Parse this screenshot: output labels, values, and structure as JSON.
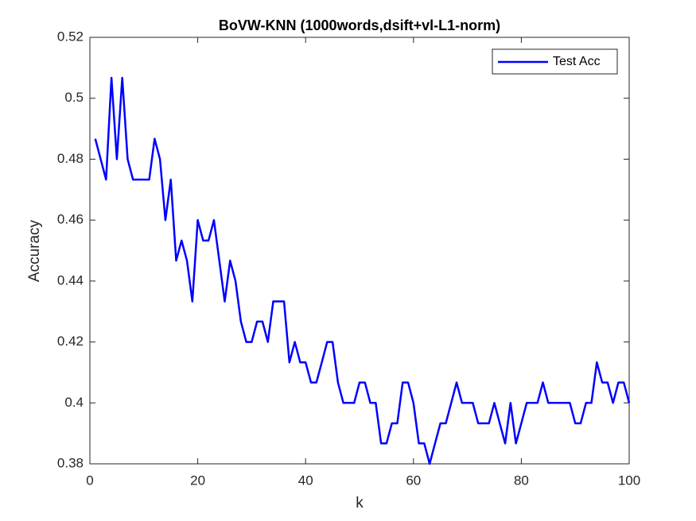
{
  "chart_data": {
    "type": "line",
    "title": "BoVW-KNN (1000words,dsift+vl-L1-norm)",
    "x_label": "k",
    "y_label": "Accuracy",
    "x": [
      1,
      2,
      3,
      4,
      5,
      6,
      7,
      8,
      9,
      10,
      11,
      12,
      13,
      14,
      15,
      16,
      17,
      18,
      19,
      20,
      21,
      22,
      23,
      24,
      25,
      26,
      27,
      28,
      29,
      30,
      31,
      32,
      33,
      34,
      35,
      36,
      37,
      38,
      39,
      40,
      41,
      42,
      43,
      44,
      45,
      46,
      47,
      48,
      49,
      50,
      51,
      52,
      53,
      54,
      55,
      56,
      57,
      58,
      59,
      60,
      61,
      62,
      63,
      64,
      65,
      66,
      67,
      68,
      69,
      70,
      71,
      72,
      73,
      74,
      75,
      76,
      77,
      78,
      79,
      80,
      81,
      82,
      83,
      84,
      85,
      86,
      87,
      88,
      89,
      90,
      91,
      92,
      93,
      94,
      95,
      96,
      97,
      98,
      99,
      100
    ],
    "series": [
      {
        "name": "Test Acc",
        "color": "#0000ff",
        "values": [
          0.4867,
          0.48,
          0.4733,
          0.5067,
          0.48,
          0.5067,
          0.48,
          0.4733,
          0.4733,
          0.4733,
          0.4733,
          0.4867,
          0.48,
          0.46,
          0.4733,
          0.4467,
          0.4533,
          0.4467,
          0.4333,
          0.46,
          0.4533,
          0.4533,
          0.46,
          0.4467,
          0.4333,
          0.4467,
          0.44,
          0.4267,
          0.42,
          0.42,
          0.4267,
          0.4267,
          0.42,
          0.4333,
          0.4333,
          0.4333,
          0.4133,
          0.42,
          0.4133,
          0.4133,
          0.4067,
          0.4067,
          0.4133,
          0.42,
          0.42,
          0.4067,
          0.4,
          0.4,
          0.4,
          0.4067,
          0.4067,
          0.4,
          0.4,
          0.3867,
          0.3867,
          0.3933,
          0.3933,
          0.4067,
          0.4067,
          0.4,
          0.3867,
          0.3867,
          0.38,
          0.3867,
          0.3933,
          0.3933,
          0.4,
          0.4067,
          0.4,
          0.4,
          0.4,
          0.3933,
          0.3933,
          0.3933,
          0.4,
          0.3933,
          0.3867,
          0.4,
          0.3867,
          0.3933,
          0.4,
          0.4,
          0.4,
          0.4067,
          0.4,
          0.4,
          0.4,
          0.4,
          0.4,
          0.3933,
          0.3933,
          0.4,
          0.4,
          0.4133,
          0.4067,
          0.4067,
          0.4,
          0.4067,
          0.4067,
          0.4
        ]
      }
    ],
    "xlim": [
      0,
      100
    ],
    "xticks": [
      0,
      20,
      40,
      60,
      80,
      100
    ],
    "ylim": [
      0.38,
      0.52
    ],
    "yticks": [
      0.38,
      0.4,
      0.42,
      0.44,
      0.46,
      0.48,
      0.5,
      0.52
    ],
    "grid": false,
    "legend": "northeast"
  }
}
